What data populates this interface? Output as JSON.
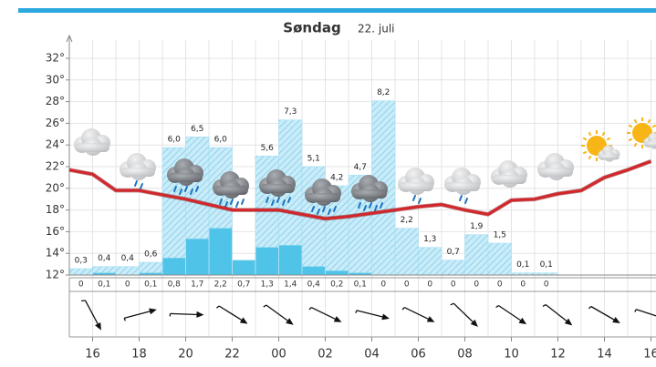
{
  "chart_data": {
    "type": "meteogram",
    "title": "Søndag",
    "subtitle": "22. juli",
    "ylim": [
      12,
      32
    ],
    "yticks": [
      {
        "value": 12,
        "label": "12°"
      },
      {
        "value": 14,
        "label": "14°"
      },
      {
        "value": 16,
        "label": "16°"
      },
      {
        "value": 18,
        "label": "18°"
      },
      {
        "value": 20,
        "label": "20°"
      },
      {
        "value": 22,
        "label": "22°"
      },
      {
        "value": 24,
        "label": "24°"
      },
      {
        "value": 26,
        "label": "26°"
      },
      {
        "value": 28,
        "label": "28°"
      },
      {
        "value": 30,
        "label": "30°"
      },
      {
        "value": 32,
        "label": "32°"
      }
    ],
    "y2lim": [
      0,
      10.2
    ],
    "xlim": [
      15,
      40
    ],
    "xticks": [
      {
        "value": 16,
        "label": "16"
      },
      {
        "value": 18,
        "label": "18"
      },
      {
        "value": 20,
        "label": "20"
      },
      {
        "value": 22,
        "label": "22"
      },
      {
        "value": 24,
        "label": "00"
      },
      {
        "value": 26,
        "label": "02"
      },
      {
        "value": 28,
        "label": "04"
      },
      {
        "value": 30,
        "label": "06"
      },
      {
        "value": 32,
        "label": "08"
      },
      {
        "value": 34,
        "label": "10"
      },
      {
        "value": 36,
        "label": "12"
      },
      {
        "value": 38,
        "label": "14"
      },
      {
        "value": 40,
        "label": "16"
      }
    ],
    "grid": true,
    "series": [
      {
        "type": "line",
        "color": "#d3262b",
        "x": [
          15,
          16,
          17,
          18,
          19,
          20,
          21,
          22,
          23,
          24,
          25,
          26,
          27,
          28,
          29,
          30,
          31,
          32,
          33,
          34,
          35,
          36,
          37,
          38,
          39,
          40
        ],
        "values": [
          21.7,
          21.3,
          19.8,
          19.8,
          19.4,
          19.0,
          18.5,
          18.0,
          18.0,
          18.0,
          17.6,
          17.2,
          17.4,
          17.7,
          18.0,
          18.3,
          18.5,
          18.0,
          17.6,
          18.9,
          19.0,
          19.5,
          19.8,
          21.0,
          21.7,
          22.5
        ]
      },
      {
        "type": "bar",
        "axis": "y2",
        "color": "#4fc3e8",
        "x": [
          15,
          16,
          17,
          18,
          19,
          20,
          21,
          22,
          23,
          24,
          25,
          26,
          27,
          28,
          29,
          30,
          31,
          32,
          33,
          34,
          35
        ],
        "values": [
          0,
          0.1,
          0,
          0.1,
          0.8,
          1.7,
          2.2,
          0.7,
          1.3,
          1.4,
          0.4,
          0.2,
          0.1,
          0,
          0,
          0,
          0,
          0,
          0,
          0,
          0
        ],
        "value_labels": [
          "0",
          "0,1",
          "0",
          "0,1",
          "0,8",
          "1,7",
          "2,2",
          "0,7",
          "1,3",
          "1,4",
          "0,4",
          "0,2",
          "0,1",
          "0",
          "0",
          "0",
          "0",
          "0",
          "0",
          "0",
          "0"
        ]
      },
      {
        "type": "hatched-bar",
        "axis": "y2",
        "color": "#9fdcf2",
        "x": [
          15,
          16,
          17,
          18,
          19,
          20,
          21,
          22,
          23,
          24,
          25,
          26,
          27,
          28,
          29,
          30,
          31,
          32,
          33,
          34,
          35
        ],
        "values": [
          0.3,
          0.4,
          0.4,
          0.6,
          6.0,
          6.5,
          6.0,
          null,
          5.6,
          7.3,
          5.1,
          4.2,
          4.7,
          8.2,
          2.2,
          1.3,
          0.7,
          1.9,
          1.5,
          0.1,
          0.1
        ],
        "value_labels": [
          "0,3",
          "0,4",
          "0,4",
          "0,6",
          "6,0",
          "6,5",
          "6,0",
          null,
          "5,6",
          "7,3",
          "5,1",
          "4,2",
          "4,7",
          "8,2",
          "2,2",
          "1,3",
          "0,7",
          "1,9",
          "1,5",
          "0,1",
          "0,1"
        ]
      }
    ],
    "wind": {
      "x": [
        16,
        18,
        20,
        22,
        24,
        26,
        28,
        30,
        32,
        34,
        36,
        38,
        40
      ],
      "angles": [
        62,
        -15,
        2,
        32,
        36,
        26,
        14,
        26,
        44,
        34,
        38,
        30,
        18
      ]
    }
  }
}
